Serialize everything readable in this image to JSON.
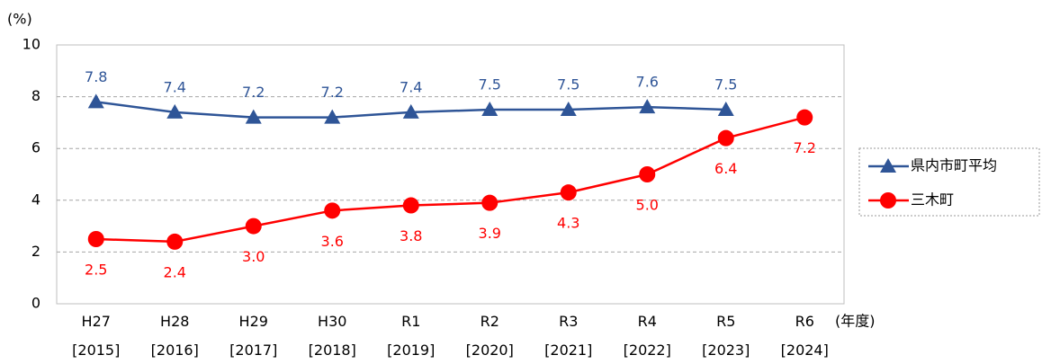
{
  "chart_data": {
    "type": "line",
    "y_label": "(%)",
    "x_label": "(年度)",
    "categories": [
      "H27\n[2015]",
      "H28\n[2016]",
      "H29\n[2017]",
      "H30\n[2018]",
      "R1\n[2019]",
      "R2\n[2020]",
      "R3\n[2021]",
      "R4\n[2022]",
      "R5\n[2023]",
      "R6\n[2024]"
    ],
    "series": [
      {
        "name": "県内市町平均",
        "color": "#2f5597",
        "marker": "triangle",
        "values": [
          7.8,
          7.4,
          7.2,
          7.2,
          7.4,
          7.5,
          7.5,
          7.6,
          7.5,
          null
        ]
      },
      {
        "name": "三木町",
        "color": "#ff0000",
        "marker": "circle",
        "values": [
          2.5,
          2.4,
          3.0,
          3.6,
          3.8,
          3.9,
          4.3,
          5.0,
          6.4,
          7.2
        ],
        "value_labels": [
          "2.5",
          "2.4",
          "3.0",
          "3.6",
          "3.8",
          "3.9",
          "4.3",
          "5.0",
          "6.4",
          "7.2"
        ]
      }
    ],
    "ylim": [
      0,
      10
    ],
    "yticks": [
      0,
      2,
      4,
      6,
      8,
      10
    ],
    "grid": true,
    "legend": "right"
  }
}
